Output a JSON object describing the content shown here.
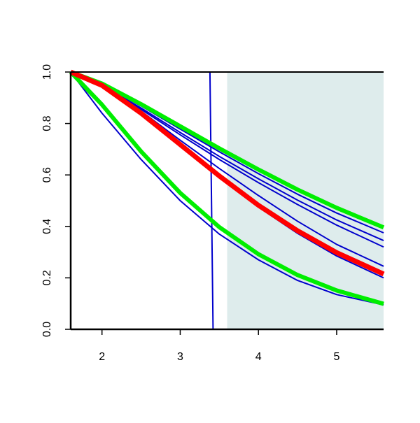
{
  "chart_data": {
    "type": "line",
    "x": [
      1.6,
      2,
      2.5,
      3,
      3.5,
      4,
      4.5,
      5,
      5.6
    ],
    "xlim": [
      1.6,
      5.6
    ],
    "xticks": [
      2,
      3,
      4,
      5
    ],
    "ylim": [
      0,
      1
    ],
    "yticks": [
      {
        "value": 0,
        "label": "0.0"
      },
      0.2,
      0.4,
      0.6,
      0.8,
      {
        "value": 1,
        "label": "1.0"
      }
    ],
    "shaded_xrange": [
      3.6,
      5.6
    ],
    "shade_color": "#deecec",
    "series": [
      {
        "color": "#0000cc",
        "width": 2,
        "x": [
          1.6,
          3.38,
          3.42,
          5.6
        ],
        "values": [
          1,
          1,
          0,
          0
        ]
      },
      {
        "color": "#0000cc",
        "width": 2,
        "values": [
          1,
          0.95,
          0.868,
          0.778,
          0.69,
          0.605,
          0.525,
          0.452,
          0.375
        ]
      },
      {
        "color": "#0000cc",
        "width": 2,
        "values": [
          1,
          0.948,
          0.86,
          0.765,
          0.672,
          0.585,
          0.502,
          0.425,
          0.345
        ]
      },
      {
        "color": "#0000cc",
        "width": 2,
        "values": [
          1,
          0.946,
          0.855,
          0.756,
          0.66,
          0.57,
          0.485,
          0.405,
          0.32
        ]
      },
      {
        "color": "#0000cc",
        "width": 2,
        "values": [
          1,
          0.948,
          0.848,
          0.735,
          0.625,
          0.52,
          0.42,
          0.33,
          0.245
        ]
      },
      {
        "color": "#0000cc",
        "width": 2,
        "values": [
          1,
          0.945,
          0.835,
          0.712,
          0.59,
          0.475,
          0.373,
          0.285,
          0.2
        ]
      },
      {
        "color": "#0000cc",
        "width": 2,
        "values": [
          1,
          0.84,
          0.66,
          0.5,
          0.37,
          0.27,
          0.19,
          0.135,
          0.095
        ]
      },
      {
        "color": "#00ee00",
        "width": 6,
        "values": [
          1,
          0.955,
          0.875,
          0.789,
          0.703,
          0.621,
          0.543,
          0.472,
          0.396
        ]
      },
      {
        "color": "#00ee00",
        "width": 6,
        "values": [
          1,
          0.873,
          0.691,
          0.53,
          0.397,
          0.292,
          0.211,
          0.151,
          0.099
        ]
      },
      {
        "color": "#ff0000",
        "width": 7,
        "values": [
          1,
          0.948,
          0.84,
          0.718,
          0.596,
          0.482,
          0.383,
          0.298,
          0.215
        ]
      }
    ]
  }
}
